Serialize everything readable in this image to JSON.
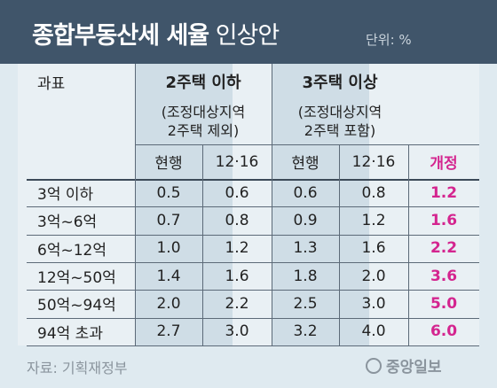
{
  "title_bold": "종합부동산세 세율",
  "title_light": "인상안",
  "unit": "단위: %",
  "corner_label": "과표",
  "group1": {
    "title": "2주택 이하",
    "sub1": "(조정대상지역",
    "sub2": "2주택 제외)"
  },
  "group2": {
    "title": "3주택 이상",
    "sub1": "(조정대상지역",
    "sub2": "2주택 포함)"
  },
  "subheaders": [
    "현행",
    "12·16",
    "현행",
    "12·16",
    "개정"
  ],
  "rows": [
    {
      "bracket": "3억 이하",
      "g1_current": "0.5",
      "g1_1216": "0.6",
      "g2_current": "0.6",
      "g2_1216": "0.8",
      "reform": "1.2"
    },
    {
      "bracket": "3억~6억",
      "g1_current": "0.7",
      "g1_1216": "0.8",
      "g2_current": "0.9",
      "g2_1216": "1.2",
      "reform": "1.6"
    },
    {
      "bracket": "6억~12억",
      "g1_current": "1.0",
      "g1_1216": "1.2",
      "g2_current": "1.3",
      "g2_1216": "1.6",
      "reform": "2.2"
    },
    {
      "bracket": "12억~50억",
      "g1_current": "1.4",
      "g1_1216": "1.6",
      "g2_current": "1.8",
      "g2_1216": "2.0",
      "reform": "3.6"
    },
    {
      "bracket": "50억~94억",
      "g1_current": "2.0",
      "g1_1216": "2.2",
      "g2_current": "2.5",
      "g2_1216": "3.0",
      "reform": "5.0"
    },
    {
      "bracket": "94억 초과",
      "g1_current": "2.7",
      "g1_1216": "3.0",
      "g2_current": "3.2",
      "g2_1216": "4.0",
      "reform": "6.0"
    }
  ],
  "source": "자료: 기획재정부",
  "logo_text": "중앙일보",
  "colors": {
    "header_bg": "#40556a",
    "reform_text": "#d4258f",
    "highlight_col": "#cfdde6"
  }
}
